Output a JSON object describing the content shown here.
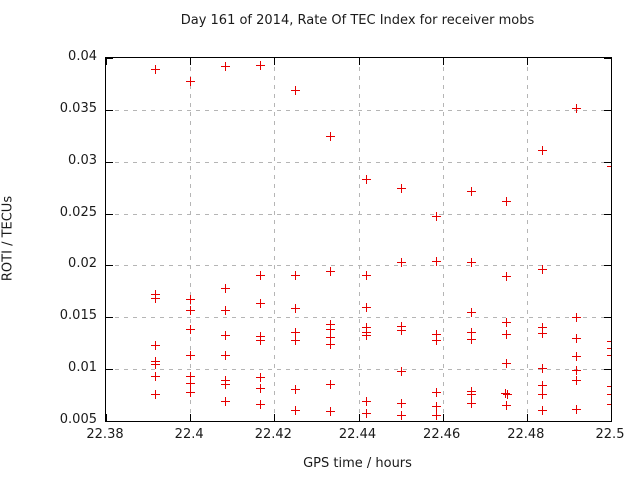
{
  "page": {
    "background": "#ffffff"
  },
  "chart_data": {
    "type": "scatter",
    "title": "Day 161 of 2014, Rate Of TEC Index for receiver mobs",
    "xlabel": "GPS time / hours",
    "ylabel": "ROTI / TECUs",
    "xlim": [
      22.38,
      22.5
    ],
    "ylim": [
      0.005,
      0.04
    ],
    "xticks": [
      "22.38",
      "22.4",
      "22.42",
      "22.44",
      "22.46",
      "22.48",
      "22.5"
    ],
    "xtick_values": [
      22.38,
      22.4,
      22.42,
      22.44,
      22.46,
      22.48,
      22.5
    ],
    "yticks": [
      "0.005",
      "0.01",
      "0.015",
      "0.02",
      "0.025",
      "0.03",
      "0.035",
      "0.04"
    ],
    "ytick_values": [
      0.005,
      0.01,
      0.015,
      0.02,
      0.025,
      0.03,
      0.035,
      0.04
    ],
    "grid": true,
    "legend_position": "none",
    "marker": "plus",
    "marker_color": "#e60000",
    "axis_color": "#000000",
    "grid_color": "#b5b5b5",
    "points": [
      [
        22.3916,
        0.0389
      ],
      [
        22.3916,
        0.0172
      ],
      [
        22.3916,
        0.0169
      ],
      [
        22.3916,
        0.0123
      ],
      [
        22.3916,
        0.0108
      ],
      [
        22.3916,
        0.0105
      ],
      [
        22.3916,
        0.0093
      ],
      [
        22.3916,
        0.0076
      ],
      [
        22.4,
        0.0378
      ],
      [
        22.4,
        0.0168
      ],
      [
        22.4,
        0.0157
      ],
      [
        22.4,
        0.0139
      ],
      [
        22.4,
        0.0114
      ],
      [
        22.4,
        0.0093
      ],
      [
        22.4,
        0.0087
      ],
      [
        22.4,
        0.0078
      ],
      [
        22.4083,
        0.0392
      ],
      [
        22.4083,
        0.0178
      ],
      [
        22.4083,
        0.0157
      ],
      [
        22.4083,
        0.0133
      ],
      [
        22.4083,
        0.0114
      ],
      [
        22.4083,
        0.009
      ],
      [
        22.4083,
        0.0086
      ],
      [
        22.4083,
        0.0069
      ],
      [
        22.4166,
        0.0393
      ],
      [
        22.4166,
        0.0191
      ],
      [
        22.4166,
        0.0164
      ],
      [
        22.4166,
        0.0132
      ],
      [
        22.4166,
        0.0128
      ],
      [
        22.4166,
        0.0092
      ],
      [
        22.4166,
        0.0082
      ],
      [
        22.4166,
        0.0066
      ],
      [
        22.4249,
        0.0369
      ],
      [
        22.4249,
        0.0191
      ],
      [
        22.4249,
        0.0159
      ],
      [
        22.4249,
        0.0136
      ],
      [
        22.4249,
        0.0128
      ],
      [
        22.4249,
        0.0081
      ],
      [
        22.4249,
        0.0061
      ],
      [
        22.4332,
        0.0325
      ],
      [
        22.4332,
        0.0195
      ],
      [
        22.4332,
        0.0144
      ],
      [
        22.4332,
        0.0139
      ],
      [
        22.4332,
        0.0131
      ],
      [
        22.4332,
        0.0124
      ],
      [
        22.4332,
        0.0086
      ],
      [
        22.4332,
        0.006
      ],
      [
        22.4417,
        0.0283
      ],
      [
        22.4417,
        0.0191
      ],
      [
        22.4417,
        0.016
      ],
      [
        22.4417,
        0.0141
      ],
      [
        22.4417,
        0.0136
      ],
      [
        22.4417,
        0.0133
      ],
      [
        22.4417,
        0.0069
      ],
      [
        22.4417,
        0.0058
      ],
      [
        22.45,
        0.0275
      ],
      [
        22.45,
        0.0203
      ],
      [
        22.45,
        0.0142
      ],
      [
        22.45,
        0.0138
      ],
      [
        22.45,
        0.0098
      ],
      [
        22.45,
        0.0067
      ],
      [
        22.45,
        0.0056
      ],
      [
        22.4583,
        0.0248
      ],
      [
        22.4583,
        0.0204
      ],
      [
        22.4583,
        0.0134
      ],
      [
        22.4583,
        0.0128
      ],
      [
        22.4583,
        0.0078
      ],
      [
        22.4583,
        0.0064
      ],
      [
        22.4583,
        0.0056
      ],
      [
        22.4667,
        0.0272
      ],
      [
        22.4667,
        0.0203
      ],
      [
        22.4667,
        0.0155
      ],
      [
        22.4667,
        0.0136
      ],
      [
        22.4667,
        0.0129
      ],
      [
        22.4667,
        0.0079
      ],
      [
        22.4667,
        0.0076
      ],
      [
        22.4667,
        0.0067
      ],
      [
        22.475,
        0.0262
      ],
      [
        22.475,
        0.019
      ],
      [
        22.475,
        0.0145
      ],
      [
        22.475,
        0.0134
      ],
      [
        22.475,
        0.0106
      ],
      [
        22.4747,
        0.0077
      ],
      [
        22.4753,
        0.0076
      ],
      [
        22.475,
        0.0065
      ],
      [
        22.4835,
        0.0311
      ],
      [
        22.4835,
        0.0197
      ],
      [
        22.4835,
        0.0141
      ],
      [
        22.4835,
        0.0135
      ],
      [
        22.4835,
        0.0101
      ],
      [
        22.4835,
        0.0085
      ],
      [
        22.4835,
        0.0076
      ],
      [
        22.4835,
        0.0061
      ],
      [
        22.4918,
        0.0352
      ],
      [
        22.4918,
        0.015
      ],
      [
        22.4918,
        0.013
      ],
      [
        22.4918,
        0.0113
      ],
      [
        22.4918,
        0.0099
      ],
      [
        22.4918,
        0.009
      ],
      [
        22.4918,
        0.0062
      ],
      [
        22.5,
        0.0296
      ],
      [
        22.5,
        0.0127
      ],
      [
        22.5,
        0.012
      ],
      [
        22.5,
        0.0114
      ],
      [
        22.5,
        0.0084
      ],
      [
        22.5,
        0.0076
      ],
      [
        22.5,
        0.0066
      ]
    ]
  }
}
